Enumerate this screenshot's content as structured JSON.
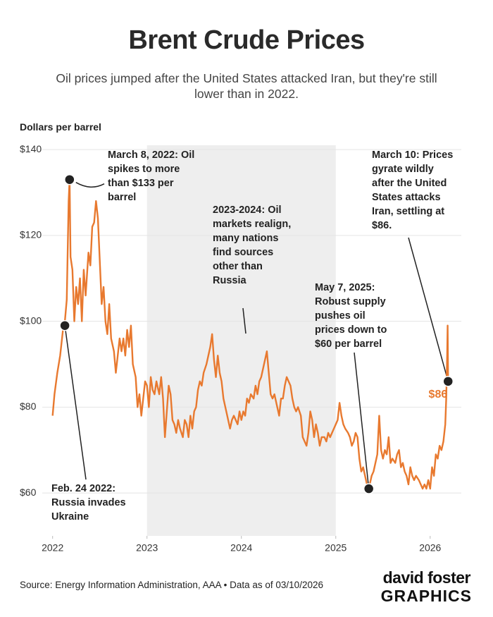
{
  "chart_data": {
    "type": "line",
    "title": "Brent Crude Prices",
    "subtitle": "Oil prices jumped after the United States attacked Iran, but they're still lower than in 2022.",
    "y_axis_label": "Dollars per barrel",
    "source": "Source: Energy Information Administration, AAA • Data as of 03/10/2026",
    "logo": {
      "line1": "david foster",
      "line2": "GRAPHICS"
    },
    "color": "#e8792f",
    "grid": true,
    "xlim": [
      2021.98,
      2026.3
    ],
    "xticks": [
      2022,
      2023,
      2024,
      2025,
      2026
    ],
    "ylim": [
      50,
      141
    ],
    "yticks": [
      {
        "value": 60,
        "label": "$60"
      },
      {
        "value": 80,
        "label": "$80"
      },
      {
        "value": 100,
        "label": "$100"
      },
      {
        "value": 120,
        "label": "$120"
      },
      {
        "value": 140,
        "label": "$140"
      }
    ],
    "shaded_range": [
      2023,
      2025
    ],
    "x": [
      2022.0,
      2022.02,
      2022.05,
      2022.08,
      2022.11,
      2022.13,
      2022.15,
      2022.17,
      2022.18,
      2022.19,
      2022.21,
      2022.23,
      2022.25,
      2022.27,
      2022.29,
      2022.31,
      2022.33,
      2022.35,
      2022.38,
      2022.4,
      2022.42,
      2022.44,
      2022.46,
      2022.48,
      2022.5,
      2022.52,
      2022.54,
      2022.56,
      2022.58,
      2022.6,
      2022.62,
      2022.65,
      2022.67,
      2022.69,
      2022.71,
      2022.73,
      2022.75,
      2022.77,
      2022.79,
      2022.81,
      2022.83,
      2022.85,
      2022.88,
      2022.9,
      2022.92,
      2022.94,
      2022.96,
      2022.98,
      2023.0,
      2023.02,
      2023.04,
      2023.06,
      2023.08,
      2023.1,
      2023.13,
      2023.15,
      2023.17,
      2023.19,
      2023.21,
      2023.23,
      2023.25,
      2023.27,
      2023.29,
      2023.31,
      2023.33,
      2023.35,
      2023.38,
      2023.4,
      2023.42,
      2023.44,
      2023.46,
      2023.48,
      2023.5,
      2023.52,
      2023.54,
      2023.56,
      2023.58,
      2023.6,
      2023.63,
      2023.65,
      2023.67,
      2023.69,
      2023.71,
      2023.73,
      2023.75,
      2023.77,
      2023.79,
      2023.81,
      2023.83,
      2023.85,
      2023.88,
      2023.9,
      2023.92,
      2023.94,
      2023.96,
      2023.98,
      2024.0,
      2024.02,
      2024.04,
      2024.06,
      2024.08,
      2024.1,
      2024.13,
      2024.15,
      2024.17,
      2024.19,
      2024.21,
      2024.23,
      2024.25,
      2024.27,
      2024.29,
      2024.31,
      2024.33,
      2024.35,
      2024.38,
      2024.4,
      2024.42,
      2024.44,
      2024.46,
      2024.48,
      2024.5,
      2024.52,
      2024.54,
      2024.56,
      2024.58,
      2024.6,
      2024.63,
      2024.65,
      2024.67,
      2024.69,
      2024.71,
      2024.73,
      2024.75,
      2024.77,
      2024.79,
      2024.81,
      2024.83,
      2024.85,
      2024.88,
      2024.9,
      2024.92,
      2024.94,
      2024.96,
      2024.98,
      2025.0,
      2025.02,
      2025.04,
      2025.06,
      2025.08,
      2025.1,
      2025.13,
      2025.15,
      2025.17,
      2025.19,
      2025.21,
      2025.23,
      2025.25,
      2025.27,
      2025.29,
      2025.31,
      2025.33,
      2025.35,
      2025.38,
      2025.4,
      2025.42,
      2025.44,
      2025.46,
      2025.48,
      2025.5,
      2025.52,
      2025.54,
      2025.56,
      2025.58,
      2025.6,
      2025.63,
      2025.65,
      2025.67,
      2025.69,
      2025.71,
      2025.73,
      2025.75,
      2025.77,
      2025.79,
      2025.81,
      2025.83,
      2025.85,
      2025.88,
      2025.9,
      2025.92,
      2025.94,
      2025.96,
      2025.98,
      2026.0,
      2026.02,
      2026.04,
      2026.06,
      2026.08,
      2026.1,
      2026.12,
      2026.14,
      2026.16,
      2026.17,
      2026.18,
      2026.185,
      2026.19
    ],
    "values": [
      78,
      83,
      88,
      92,
      98,
      100,
      105,
      128,
      133,
      115,
      112,
      100,
      108,
      104,
      110,
      100,
      112,
      106,
      116,
      113,
      122,
      123,
      128,
      124,
      114,
      104,
      108,
      100,
      97,
      104,
      96,
      93,
      88,
      92,
      96,
      93,
      96,
      92,
      98,
      94,
      99,
      90,
      87,
      80,
      83,
      78,
      82,
      86,
      85,
      80,
      87,
      84,
      83,
      86,
      83,
      87,
      82,
      73,
      79,
      85,
      83,
      77,
      76,
      74,
      77,
      75,
      73,
      77,
      76,
      73,
      78,
      75,
      79,
      80,
      84,
      86,
      85,
      88,
      90,
      92,
      94,
      97,
      91,
      87,
      92,
      88,
      86,
      82,
      80,
      78,
      75,
      77,
      78,
      77,
      76,
      79,
      77,
      79,
      78,
      82,
      81,
      83,
      82,
      85,
      83,
      86,
      87,
      89,
      91,
      93,
      88,
      83,
      82,
      83,
      80,
      78,
      82,
      82,
      85,
      87,
      86,
      85,
      82,
      80,
      79,
      80,
      78,
      73,
      72,
      71,
      74,
      79,
      77,
      73,
      76,
      74,
      71,
      73,
      73,
      72,
      74,
      73,
      74,
      75,
      76,
      77,
      81,
      78,
      76,
      75,
      74,
      73,
      71,
      72,
      74,
      73,
      68,
      65,
      66,
      64,
      62,
      61,
      64,
      65,
      67,
      69,
      78,
      70,
      68,
      70,
      69,
      73,
      67,
      68,
      67,
      69,
      70,
      66,
      67,
      65,
      64,
      62,
      66,
      64,
      63,
      64,
      63,
      62,
      61,
      62,
      61,
      63,
      61,
      66,
      64,
      69,
      68,
      71,
      70,
      72,
      76,
      82,
      92,
      99,
      86
    ],
    "end_value": 86,
    "end_value_label": "$86",
    "annotations": [
      {
        "text": "March 8, 2022: Oil spikes to more than $133 per barrel",
        "x": 2022.18,
        "y": 133
      },
      {
        "text": "Feb. 24 2022: Russia invades Ukraine",
        "x": 2022.13,
        "y": 99
      },
      {
        "text": "2023-2024: Oil markets realign, many nations find sources other than Russia"
      },
      {
        "text": "May 7, 2025: Robust supply pushes oil prices down to $60 per barrel",
        "x": 2025.35,
        "y": 61
      },
      {
        "text": "March 10: Prices gyrate wildly after the United States attacks Iran, settling at $86.",
        "x": 2026.19,
        "y": 86
      }
    ]
  }
}
